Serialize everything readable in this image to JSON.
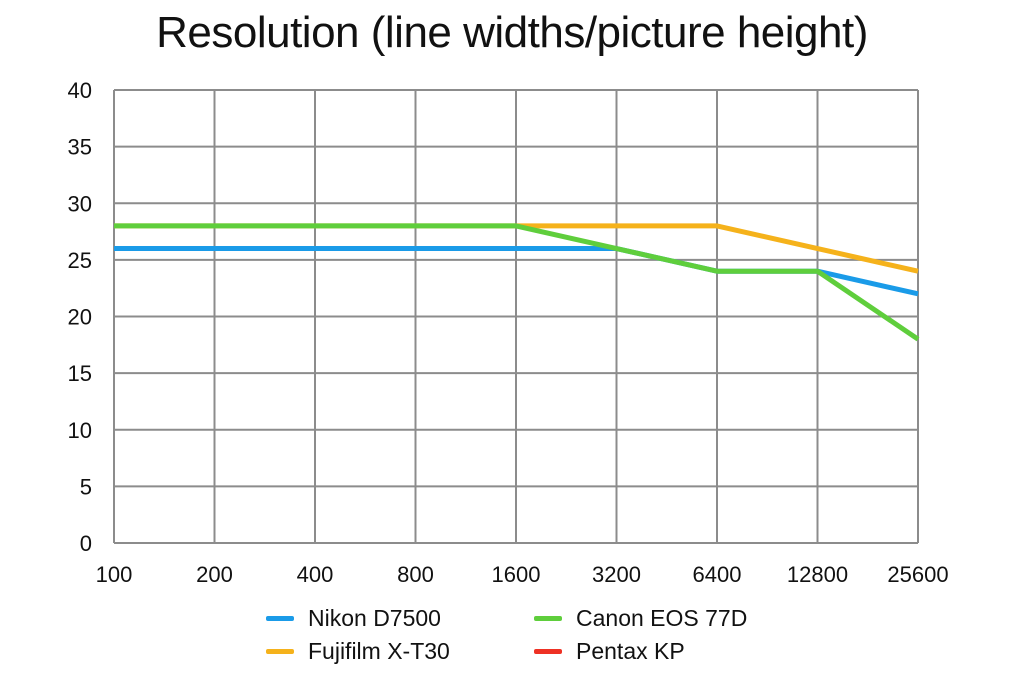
{
  "chart_data": {
    "type": "line",
    "title": "Resolution (line widths/picture height)",
    "xlabel": "",
    "ylabel": "",
    "categories": [
      "100",
      "200",
      "400",
      "800",
      "1600",
      "3200",
      "6400",
      "12800",
      "25600"
    ],
    "ylim": [
      0,
      40
    ],
    "yticks": [
      0,
      5,
      10,
      15,
      20,
      25,
      30,
      35,
      40
    ],
    "grid": true,
    "legend_position": "bottom",
    "series": [
      {
        "name": "Nikon D7500",
        "color": "#1a9be8",
        "values": [
          26,
          26,
          26,
          26,
          26,
          26,
          24,
          24,
          22
        ]
      },
      {
        "name": "Fujifilm X-T30",
        "color": "#f5b21b",
        "values": [
          28,
          28,
          28,
          28,
          28,
          28,
          28,
          26,
          24
        ]
      },
      {
        "name": "Canon EOS 77D",
        "color": "#5fce3c",
        "values": [
          28,
          28,
          28,
          28,
          28,
          26,
          24,
          24,
          18
        ]
      },
      {
        "name": "Pentax KP",
        "color": "#ee3124",
        "values": [
          null,
          null,
          null,
          null,
          null,
          null,
          null,
          null,
          null
        ]
      }
    ]
  }
}
